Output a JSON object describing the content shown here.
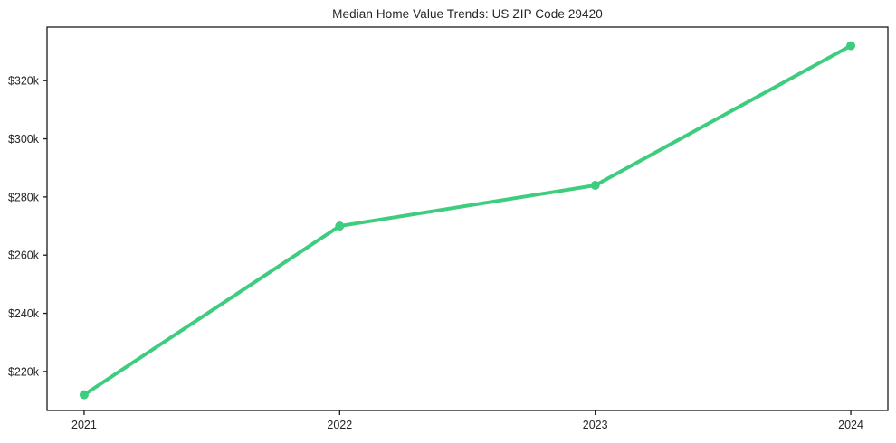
{
  "chart_data": {
    "type": "line",
    "title": "Median Home Value Trends: US ZIP Code 29420",
    "x": [
      2021,
      2022,
      2023,
      2024
    ],
    "series": [
      {
        "name": "Median Home Value",
        "values": [
          212000,
          270000,
          284000,
          332000
        ]
      }
    ],
    "x_tick_labels": [
      "2021",
      "2022",
      "2023",
      "2024"
    ],
    "y_ticks": [
      220000,
      240000,
      260000,
      280000,
      300000,
      320000
    ],
    "y_tick_labels": [
      "$220k",
      "$240k",
      "$260k",
      "$280k",
      "$300k",
      "$320k"
    ],
    "xlim": [
      2020.855,
      2024.145
    ],
    "ylim": [
      206600,
      338400
    ],
    "xlabel": "",
    "ylabel": "",
    "grid": false,
    "legend": "none",
    "line_color": "#3ecc7e",
    "marker": "circle",
    "marker_radius": 5,
    "line_width": 4,
    "axis_color": "#1a1a1a",
    "text_color": "#262626",
    "background": "#ffffff"
  }
}
